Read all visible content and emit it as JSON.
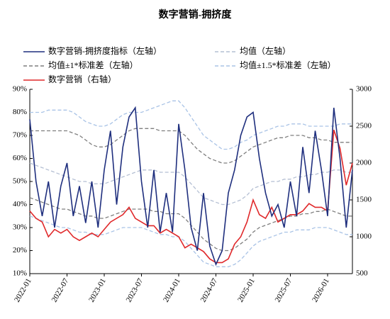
{
  "chart_data": {
    "type": "line",
    "title": "数字营销-拥挤度",
    "categories": [
      "2022-01",
      null,
      null,
      null,
      null,
      null,
      "2022-07",
      null,
      null,
      null,
      null,
      null,
      "2023-01",
      null,
      null,
      null,
      null,
      null,
      "2023-07",
      null,
      null,
      null,
      null,
      null,
      "2024-01",
      null,
      null,
      null,
      null,
      null,
      "2024-07",
      null,
      null,
      null,
      null,
      null,
      "2025-01",
      null,
      null,
      null,
      null,
      null,
      "2025-07",
      null,
      null,
      null,
      null,
      null,
      "2026-01",
      null,
      null,
      null,
      null
    ],
    "series": [
      {
        "name": "数字营销-拥挤度指标（左轴）",
        "color": "#1f2f7e",
        "axis": "y",
        "values": [
          77,
          50,
          35,
          50,
          30,
          48,
          58,
          35,
          48,
          32,
          50,
          30,
          55,
          72,
          40,
          65,
          78,
          82,
          50,
          30,
          55,
          28,
          45,
          28,
          75,
          55,
          30,
          20,
          45,
          22,
          14,
          20,
          45,
          55,
          70,
          78,
          80,
          60,
          45,
          35,
          40,
          30,
          50,
          35,
          65,
          45,
          72,
          55,
          35,
          82,
          60,
          30,
          55
        ]
      },
      {
        "name": "均值（左轴）",
        "color": "#b4bfd3",
        "dash": "5,3",
        "axis": "y",
        "values": [
          58,
          57,
          56,
          55,
          54,
          53,
          52,
          51,
          50,
          50,
          49,
          49,
          49,
          50,
          51,
          52,
          53,
          54,
          55,
          55,
          55,
          54,
          54,
          54,
          54,
          52,
          49,
          46,
          43,
          42,
          41,
          40,
          40,
          41,
          42,
          44,
          47,
          48,
          49,
          50,
          50,
          51,
          51,
          52,
          52,
          53,
          53,
          54,
          54,
          55,
          55,
          54,
          54
        ]
      },
      {
        "name": "均值±1*标准差（左轴）",
        "color": "#7f7f7f",
        "dash": "5,3",
        "axis": "y",
        "upper": [
          72,
          72,
          72,
          72,
          72,
          72,
          72,
          71,
          70,
          68,
          66,
          65,
          65,
          66,
          68,
          70,
          72,
          73,
          73,
          73,
          73,
          72,
          72,
          72,
          72,
          70,
          67,
          64,
          62,
          60,
          59,
          58,
          58,
          59,
          61,
          63,
          65,
          66,
          67,
          68,
          69,
          69,
          70,
          70,
          70,
          69,
          69,
          68,
          68,
          67,
          67,
          67,
          67
        ],
        "lower": [
          43,
          42,
          41,
          40,
          39,
          38,
          38,
          37,
          36,
          35,
          35,
          34,
          34,
          35,
          36,
          37,
          38,
          38,
          38,
          38,
          37,
          37,
          36,
          36,
          36,
          34,
          31,
          28,
          25,
          23,
          21,
          20,
          20,
          21,
          23,
          25,
          28,
          30,
          31,
          32,
          33,
          34,
          35,
          35,
          36,
          36,
          37,
          37,
          38,
          37,
          36,
          35,
          35
        ]
      },
      {
        "name": "均值±1.5*标准差（左轴）",
        "color": "#a9c3e6",
        "dash": "5,3",
        "axis": "y",
        "upper": [
          80,
          80,
          80,
          81,
          81,
          81,
          81,
          80,
          78,
          76,
          75,
          74,
          74,
          75,
          77,
          79,
          80,
          80,
          80,
          81,
          82,
          83,
          84,
          85,
          85,
          82,
          78,
          74,
          70,
          68,
          66,
          64,
          64,
          65,
          67,
          68,
          70,
          71,
          72,
          73,
          74,
          74,
          75,
          75,
          75,
          74,
          74,
          74,
          74,
          74,
          75,
          75,
          75
        ],
        "lower": [
          35,
          34,
          33,
          32,
          31,
          30,
          30,
          29,
          28,
          28,
          27,
          27,
          27,
          28,
          29,
          30,
          30,
          30,
          30,
          29,
          28,
          27,
          27,
          26,
          26,
          24,
          21,
          18,
          15,
          14,
          13,
          13,
          13,
          14,
          16,
          19,
          22,
          24,
          25,
          26,
          27,
          28,
          28,
          29,
          29,
          29,
          30,
          30,
          30,
          29,
          28,
          27,
          27
        ]
      },
      {
        "name": "数字营销（右轴）",
        "color": "#e0282a",
        "axis": "y2",
        "values": [
          1350,
          1250,
          1200,
          1000,
          1100,
          1050,
          1100,
          1000,
          950,
          1000,
          1050,
          1000,
          1100,
          1200,
          1250,
          1300,
          1400,
          1250,
          1200,
          1150,
          1150,
          1050,
          1100,
          1050,
          1000,
          850,
          900,
          850,
          800,
          700,
          650,
          650,
          700,
          900,
          1000,
          1200,
          1500,
          1300,
          1250,
          1400,
          1200,
          1250,
          1300,
          1300,
          1350,
          1450,
          1400,
          1400,
          1350,
          2450,
          2200,
          1700,
          2000
        ]
      }
    ],
    "ylim": [
      10,
      90
    ],
    "yticks": [
      {
        "value": 10,
        "label": "10%"
      },
      {
        "value": 20,
        "label": "20%"
      },
      {
        "value": 30,
        "label": "30%"
      },
      {
        "value": 40,
        "label": "40%"
      },
      {
        "value": 50,
        "label": "50%"
      },
      {
        "value": 60,
        "label": "60%"
      },
      {
        "value": 70,
        "label": "70%"
      },
      {
        "value": 80,
        "label": "80%"
      },
      {
        "value": 90,
        "label": "90%"
      }
    ],
    "y2lim": [
      500,
      3000
    ],
    "y2ticks": [
      500,
      1000,
      1500,
      2000,
      2500,
      3000
    ]
  }
}
